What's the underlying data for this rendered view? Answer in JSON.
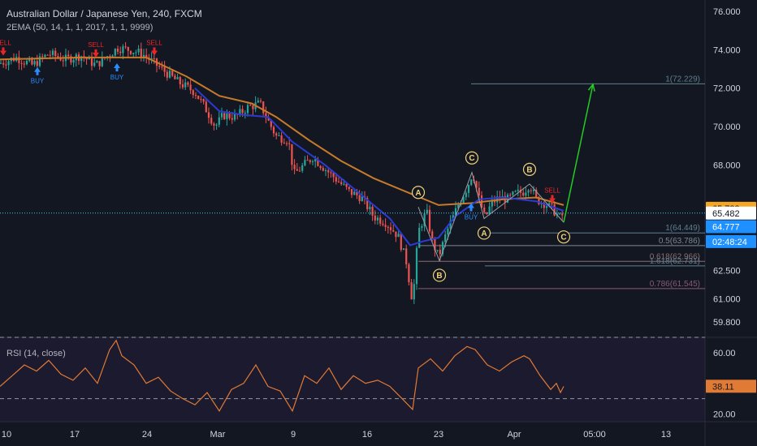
{
  "header": {
    "title": "Australian Dollar / Japanese Yen, 240, FXCM",
    "indicator": "2EMA (50, 14, 1, 1, 2017, 1, 1, 9999)"
  },
  "rsi_label": "RSI (14, close)",
  "colors": {
    "background": "#131722",
    "candle_up": "#26a69a",
    "candle_down": "#ef5350",
    "ema_slow": "#c67a2a",
    "ema_fast": "#2b3bd4",
    "rsi_line": "#e07a34",
    "wave_labels": "#f0d27a",
    "target_arrow": "#22cc22",
    "buy": "#2a8cff",
    "sell": "#e8262a"
  },
  "chart_data": {
    "type": "candlestick",
    "title": "Australian Dollar / Japanese Yen, 240, FXCM",
    "ylim": [
      59.0,
      76.6
    ],
    "y_ticks": [
      "76.000",
      "74.000",
      "72.000",
      "70.000",
      "68.000",
      "65.733",
      "65.482",
      "64.777",
      "62.500",
      "61.000",
      "59.800"
    ],
    "x_ticks": [
      "10",
      "17",
      "24",
      "Mar",
      "9",
      "16",
      "23",
      "Apr",
      "05:00",
      "13"
    ],
    "price_path": [
      [
        0,
        73.3
      ],
      [
        20,
        73.6
      ],
      [
        40,
        73.2
      ],
      [
        60,
        73.8
      ],
      [
        80,
        73.5
      ],
      [
        100,
        73.7
      ],
      [
        118,
        73.2
      ],
      [
        130,
        73.6
      ],
      [
        145,
        74.1
      ],
      [
        160,
        74.0
      ],
      [
        175,
        73.8
      ],
      [
        190,
        73.3
      ],
      [
        205,
        72.8
      ],
      [
        220,
        72.3
      ],
      [
        240,
        71.8
      ],
      [
        255,
        70.8
      ],
      [
        265,
        70.0
      ],
      [
        275,
        70.6
      ],
      [
        290,
        70.5
      ],
      [
        305,
        71.0
      ],
      [
        320,
        71.2
      ],
      [
        330,
        70.3
      ],
      [
        340,
        69.5
      ],
      [
        355,
        69.3
      ],
      [
        362,
        67.5
      ],
      [
        372,
        67.9
      ],
      [
        385,
        68.4
      ],
      [
        400,
        67.8
      ],
      [
        415,
        67.2
      ],
      [
        430,
        66.6
      ],
      [
        445,
        66.3
      ],
      [
        460,
        65.3
      ],
      [
        475,
        65.0
      ],
      [
        490,
        64.3
      ],
      [
        500,
        63.0
      ],
      [
        508,
        60.8
      ],
      [
        515,
        64.5
      ],
      [
        525,
        65.6
      ],
      [
        532,
        64.0
      ],
      [
        540,
        63.2
      ],
      [
        550,
        64.5
      ],
      [
        565,
        66.0
      ],
      [
        575,
        66.8
      ],
      [
        582,
        67.6
      ],
      [
        590,
        66.2
      ],
      [
        597,
        65.2
      ],
      [
        605,
        66.0
      ],
      [
        615,
        66.3
      ],
      [
        625,
        66.2
      ],
      [
        635,
        66.5
      ],
      [
        645,
        66.6
      ],
      [
        652,
        67.0
      ],
      [
        660,
        66.2
      ],
      [
        670,
        66.0
      ],
      [
        680,
        65.7
      ],
      [
        690,
        65.2
      ],
      [
        694,
        65.5
      ]
    ],
    "ema_slow": [
      [
        0,
        73.5
      ],
      [
        100,
        73.6
      ],
      [
        180,
        73.6
      ],
      [
        230,
        72.6
      ],
      [
        270,
        71.6
      ],
      [
        310,
        71.2
      ],
      [
        340,
        70.5
      ],
      [
        380,
        69.3
      ],
      [
        420,
        68.2
      ],
      [
        460,
        67.3
      ],
      [
        500,
        66.6
      ],
      [
        540,
        65.9
      ],
      [
        580,
        66.0
      ],
      [
        620,
        66.2
      ],
      [
        660,
        66.3
      ],
      [
        694,
        65.9
      ]
    ],
    "ema_fast": [
      [
        240,
        72.0
      ],
      [
        270,
        70.8
      ],
      [
        300,
        70.6
      ],
      [
        330,
        70.5
      ],
      [
        360,
        69.2
      ],
      [
        400,
        68.0
      ],
      [
        440,
        66.6
      ],
      [
        480,
        65.2
      ],
      [
        505,
        63.8
      ],
      [
        520,
        64.0
      ],
      [
        540,
        64.2
      ],
      [
        560,
        65.3
      ],
      [
        590,
        66.2
      ],
      [
        620,
        66.3
      ],
      [
        660,
        66.1
      ],
      [
        694,
        65.6
      ]
    ],
    "fib_levels": [
      {
        "label": "1(72.229)",
        "price": 72.229,
        "color": "#5f7f8f",
        "x_start": 580
      },
      {
        "label": "1(64.449)",
        "price": 64.449,
        "color": "#5f7f8f",
        "x_start": 597
      },
      {
        "label": "0.5(63.786)",
        "price": 63.786,
        "color": "#7e8794",
        "x_start": 515
      },
      {
        "label": "0.618(62.966)",
        "price": 62.966,
        "color": "#8a6f6f",
        "x_start": 515
      },
      {
        "label": "1.618(62.731)",
        "price": 62.731,
        "color": "#5f7f8f",
        "x_start": 597
      },
      {
        "label": "0.786(61.545)",
        "price": 61.545,
        "color": "#8a5a7a",
        "x_start": 515
      }
    ],
    "waves": [
      {
        "label": "A",
        "x": 515,
        "price": 65.8,
        "pos": "above"
      },
      {
        "label": "B",
        "x": 541,
        "price": 63.0,
        "pos": "below"
      },
      {
        "label": "C",
        "x": 581,
        "price": 67.6,
        "pos": "above"
      },
      {
        "label": "A",
        "x": 596,
        "price": 65.2,
        "pos": "below"
      },
      {
        "label": "B",
        "x": 652,
        "price": 67.0,
        "pos": "above"
      },
      {
        "label": "C",
        "x": 694,
        "price": 65.0,
        "pos": "below"
      }
    ],
    "signals": [
      {
        "type": "BUY",
        "x": 46,
        "price": 73.1
      },
      {
        "type": "BUY",
        "x": 144,
        "price": 73.3
      },
      {
        "type": "SELL",
        "x": 118,
        "price": 73.6
      },
      {
        "type": "SELL",
        "x": 190,
        "price": 73.7
      },
      {
        "type": "SELL",
        "x": 4,
        "price": 73.7
      },
      {
        "type": "BUY",
        "x": 580,
        "price": 66.0
      },
      {
        "type": "SELL",
        "x": 680,
        "price": 66.0
      }
    ],
    "target_arrow": {
      "from": [
        694,
        65.0
      ],
      "to": [
        730,
        72.2
      ]
    },
    "price_tags": [
      {
        "text": "65.733",
        "price": 65.733,
        "bg": "#f5a623",
        "fg": "#131722"
      },
      {
        "text": "65.482",
        "price": 65.482,
        "bg": "#ffffff",
        "fg": "#131722"
      },
      {
        "text": "64.777",
        "price": 64.777,
        "bg": "#1e90ff",
        "fg": "#ffffff"
      },
      {
        "text": "02:48:24",
        "price": 64.0,
        "bg": "#1e90ff",
        "fg": "#ffffff"
      }
    ],
    "current_price_line": 65.482,
    "rsi": {
      "ylim": [
        15,
        70
      ],
      "levels": [
        70,
        30
      ],
      "last": 38.11,
      "y_ticks": [
        "60.00",
        "38.11",
        "20.00"
      ],
      "path": [
        [
          0,
          38
        ],
        [
          15,
          45
        ],
        [
          30,
          52
        ],
        [
          45,
          48
        ],
        [
          60,
          55
        ],
        [
          75,
          46
        ],
        [
          90,
          42
        ],
        [
          105,
          50
        ],
        [
          120,
          40
        ],
        [
          135,
          62
        ],
        [
          143,
          68
        ],
        [
          150,
          58
        ],
        [
          165,
          52
        ],
        [
          180,
          40
        ],
        [
          195,
          44
        ],
        [
          210,
          35
        ],
        [
          225,
          30
        ],
        [
          240,
          26
        ],
        [
          255,
          34
        ],
        [
          270,
          22
        ],
        [
          285,
          36
        ],
        [
          300,
          40
        ],
        [
          315,
          52
        ],
        [
          330,
          38
        ],
        [
          345,
          35
        ],
        [
          360,
          22
        ],
        [
          375,
          45
        ],
        [
          390,
          40
        ],
        [
          405,
          50
        ],
        [
          420,
          36
        ],
        [
          435,
          45
        ],
        [
          450,
          40
        ],
        [
          465,
          42
        ],
        [
          480,
          38
        ],
        [
          495,
          30
        ],
        [
          508,
          23
        ],
        [
          515,
          50
        ],
        [
          530,
          56
        ],
        [
          545,
          48
        ],
        [
          560,
          58
        ],
        [
          575,
          64
        ],
        [
          585,
          62
        ],
        [
          600,
          52
        ],
        [
          615,
          48
        ],
        [
          630,
          54
        ],
        [
          645,
          58
        ],
        [
          652,
          56
        ],
        [
          665,
          45
        ],
        [
          678,
          36
        ],
        [
          685,
          40
        ],
        [
          690,
          34
        ],
        [
          694,
          38
        ]
      ]
    }
  }
}
